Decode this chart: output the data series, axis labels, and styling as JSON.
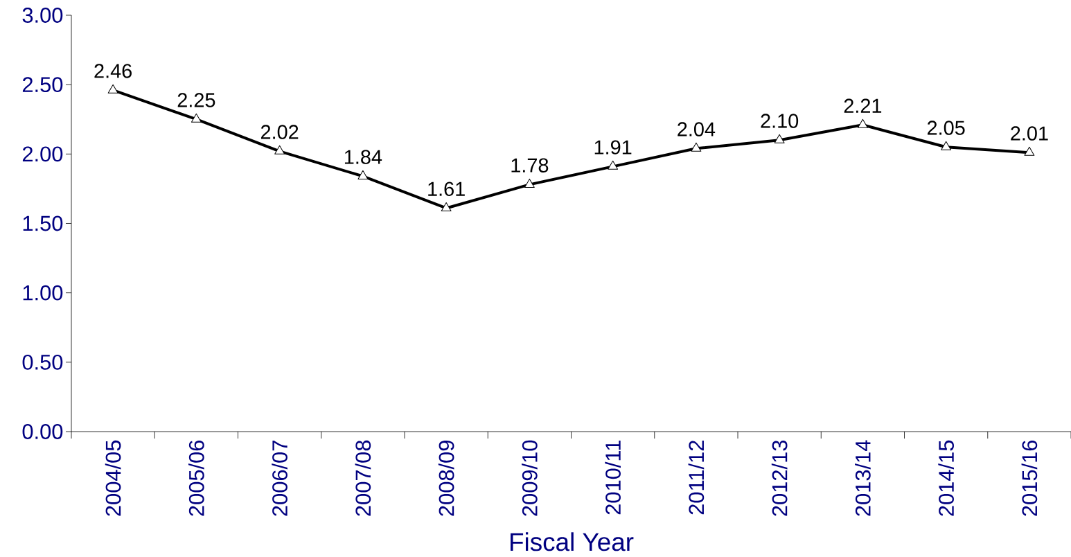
{
  "chart_data": {
    "type": "line",
    "xlabel": "Fiscal Year",
    "categories": [
      "2004/05",
      "2005/06",
      "2006/07",
      "2007/08",
      "2008/09",
      "2009/10",
      "2010/11",
      "2011/12",
      "2012/13",
      "2013/14",
      "2014/15",
      "2015/16"
    ],
    "series": [
      {
        "color": "#000000",
        "values": [
          2.46,
          2.25,
          2.02,
          1.84,
          1.61,
          1.78,
          1.91,
          2.04,
          2.1,
          2.21,
          2.05,
          2.01
        ],
        "value_labels": [
          "2.46",
          "2.25",
          "2.02",
          "1.84",
          "1.61",
          "1.78",
          "1.91",
          "2.04",
          "2.10",
          "2.21",
          "2.05",
          "2.01"
        ]
      }
    ],
    "ylim": [
      0,
      3
    ],
    "yticks": [
      {
        "value": 0,
        "label": "0.00"
      },
      {
        "value": 0.5,
        "label": "0.50"
      },
      {
        "value": 1,
        "label": "1.00"
      },
      {
        "value": 1.5,
        "label": "1.50"
      },
      {
        "value": 2,
        "label": "2.00"
      },
      {
        "value": 2.5,
        "label": "2.50"
      },
      {
        "value": 3,
        "label": "3.00"
      }
    ],
    "marker": "triangle",
    "line_style": "solid"
  }
}
